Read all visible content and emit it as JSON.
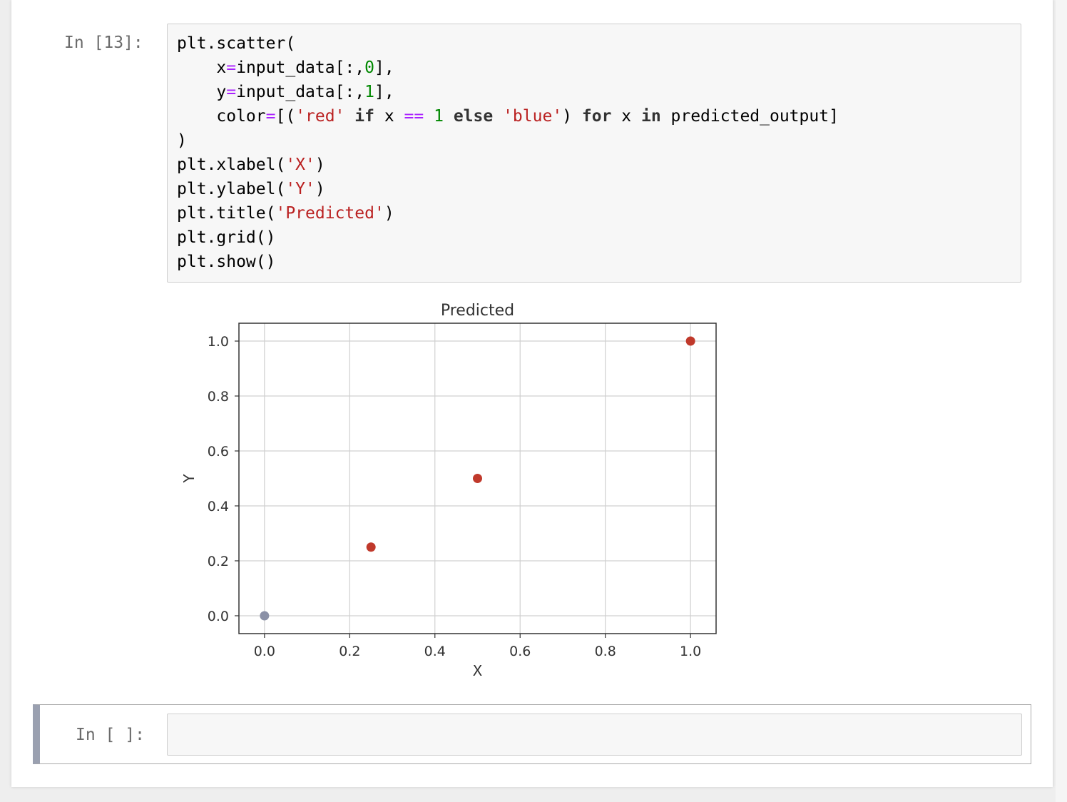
{
  "cells": {
    "executed": {
      "prompt": "In [13]:",
      "code_lines": [
        [
          [
            "plt.scatter(",
            ""
          ]
        ],
        [
          [
            "    x",
            ""
          ],
          [
            "=",
            "op"
          ],
          [
            "input_data[:,",
            ""
          ],
          [
            "0",
            "num"
          ],
          [
            "],",
            ""
          ]
        ],
        [
          [
            "    y",
            ""
          ],
          [
            "=",
            "op"
          ],
          [
            "input_data[:,",
            ""
          ],
          [
            "1",
            "num"
          ],
          [
            "],",
            ""
          ]
        ],
        [
          [
            "    color",
            ""
          ],
          [
            "=",
            "op"
          ],
          [
            "[(",
            ""
          ],
          [
            "'red'",
            "str"
          ],
          [
            " ",
            ""
          ],
          [
            "if",
            "gray-kw"
          ],
          [
            " x ",
            ""
          ],
          [
            "==",
            "op"
          ],
          [
            " ",
            ""
          ],
          [
            "1",
            "num"
          ],
          [
            " ",
            ""
          ],
          [
            "else",
            "gray-kw"
          ],
          [
            " ",
            ""
          ],
          [
            "'blue'",
            "str"
          ],
          [
            ") ",
            ""
          ],
          [
            "for",
            "gray-kw"
          ],
          [
            " x ",
            ""
          ],
          [
            "in",
            "gray-kw"
          ],
          [
            " predicted_output]",
            ""
          ]
        ],
        [
          [
            ")",
            ""
          ]
        ],
        [
          [
            "plt.xlabel(",
            ""
          ],
          [
            "'X'",
            "str"
          ],
          [
            ")",
            ""
          ]
        ],
        [
          [
            "plt.ylabel(",
            ""
          ],
          [
            "'Y'",
            "str"
          ],
          [
            ")",
            ""
          ]
        ],
        [
          [
            "plt.title(",
            ""
          ],
          [
            "'Predicted'",
            "str"
          ],
          [
            ")",
            ""
          ]
        ],
        [
          [
            "plt.grid()",
            ""
          ]
        ],
        [
          [
            "plt.show()",
            ""
          ]
        ]
      ]
    },
    "empty": {
      "prompt": "In [ ]:"
    }
  },
  "chart_data": {
    "type": "scatter",
    "title": "Predicted",
    "xlabel": "X",
    "ylabel": "Y",
    "xlim": [
      -0.06,
      1.06
    ],
    "ylim": [
      -0.065,
      1.065
    ],
    "xticks": [
      0.0,
      0.2,
      0.4,
      0.6,
      0.8,
      1.0
    ],
    "yticks": [
      0.0,
      0.2,
      0.4,
      0.6,
      0.8,
      1.0
    ],
    "tick_labels_x": [
      "0.0",
      "0.2",
      "0.4",
      "0.6",
      "0.8",
      "1.0"
    ],
    "tick_labels_y": [
      "0.0",
      "0.2",
      "0.4",
      "0.6",
      "0.8",
      "1.0"
    ],
    "grid": true,
    "points": [
      {
        "x": 0.0,
        "y": 0.0,
        "color": "#8a90a6"
      },
      {
        "x": 0.25,
        "y": 0.25,
        "color": "#c0392b"
      },
      {
        "x": 0.5,
        "y": 0.5,
        "color": "#c0392b"
      },
      {
        "x": 1.0,
        "y": 1.0,
        "color": "#c0392b"
      }
    ]
  }
}
